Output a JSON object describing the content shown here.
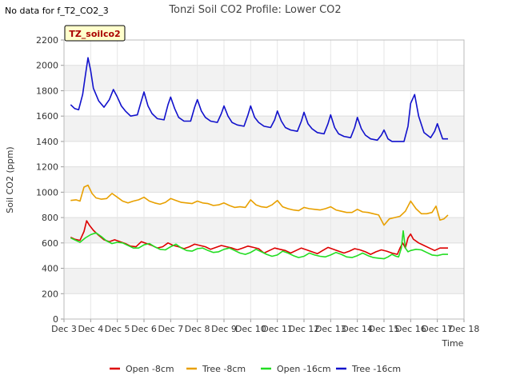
{
  "no_data_note": "No data for f_T2_CO2_3",
  "site_badge": "TZ_soilco2",
  "chart_data": {
    "type": "line",
    "title": "Tonzi Soil CO2 Profile: Lower CO2",
    "xlabel": "Time",
    "ylabel": "Soil CO2 (ppm)",
    "xlim": [
      3,
      18
    ],
    "ylim": [
      0,
      2200
    ],
    "x_ticks": [
      3,
      4,
      5,
      6,
      7,
      8,
      9,
      10,
      11,
      12,
      13,
      14,
      15,
      16,
      17,
      18
    ],
    "x_tick_labels": [
      "Dec 3",
      "Dec 4",
      "Dec 5",
      "Dec 6",
      "Dec 7",
      "Dec 8",
      "Dec 9",
      "Dec 10",
      "Dec 11",
      "Dec 12",
      "Dec 13",
      "Dec 14",
      "Dec 15",
      "Dec 16",
      "Dec 17",
      "Dec 18"
    ],
    "y_ticks": [
      0,
      200,
      400,
      600,
      800,
      1000,
      1200,
      1400,
      1600,
      1800,
      2000,
      2200
    ],
    "grid": true,
    "legend_position": "bottom",
    "series": [
      {
        "name": "Open -8cm",
        "color": "#dd0000",
        "x": [
          3.25,
          3.4,
          3.6,
          3.75,
          3.85,
          3.95,
          4.1,
          4.3,
          4.5,
          4.7,
          4.9,
          5.1,
          5.3,
          5.5,
          5.7,
          5.9,
          6.1,
          6.3,
          6.5,
          6.7,
          6.9,
          7.1,
          7.3,
          7.5,
          7.7,
          7.9,
          8.1,
          8.3,
          8.5,
          8.7,
          8.9,
          9.1,
          9.3,
          9.5,
          9.7,
          9.9,
          10.1,
          10.3,
          10.5,
          10.7,
          10.9,
          11.1,
          11.3,
          11.5,
          11.7,
          11.9,
          12.1,
          12.3,
          12.5,
          12.7,
          12.9,
          13.1,
          13.3,
          13.5,
          13.7,
          13.9,
          14.1,
          14.3,
          14.5,
          14.7,
          14.9,
          15.1,
          15.3,
          15.5,
          15.6,
          15.7,
          15.8,
          15.9,
          16.0,
          16.1,
          16.3,
          16.5,
          16.7,
          16.9,
          17.1,
          17.4
        ],
        "y": [
          645,
          630,
          620,
          690,
          775,
          740,
          700,
          660,
          625,
          610,
          625,
          610,
          595,
          575,
          570,
          610,
          595,
          580,
          560,
          570,
          600,
          580,
          570,
          555,
          570,
          590,
          580,
          570,
          550,
          565,
          580,
          570,
          560,
          545,
          560,
          575,
          565,
          555,
          520,
          540,
          560,
          550,
          540,
          520,
          540,
          560,
          545,
          530,
          515,
          540,
          565,
          550,
          535,
          520,
          535,
          555,
          545,
          530,
          510,
          530,
          545,
          535,
          520,
          510,
          560,
          600,
          560,
          640,
          670,
          630,
          600,
          580,
          560,
          540,
          560,
          560
        ]
      },
      {
        "name": "Tree -8cm",
        "color": "#e8a000",
        "x": [
          3.25,
          3.45,
          3.6,
          3.75,
          3.9,
          4.05,
          4.2,
          4.4,
          4.6,
          4.8,
          5.0,
          5.2,
          5.4,
          5.6,
          5.8,
          6.0,
          6.2,
          6.4,
          6.6,
          6.8,
          7.0,
          7.2,
          7.4,
          7.6,
          7.8,
          8.0,
          8.2,
          8.4,
          8.6,
          8.8,
          9.0,
          9.2,
          9.4,
          9.6,
          9.8,
          10.0,
          10.2,
          10.4,
          10.6,
          10.8,
          11.0,
          11.2,
          11.4,
          11.6,
          11.8,
          12.0,
          12.2,
          12.4,
          12.6,
          12.8,
          13.0,
          13.2,
          13.4,
          13.6,
          13.8,
          14.0,
          14.2,
          14.4,
          14.6,
          14.8,
          15.0,
          15.2,
          15.4,
          15.6,
          15.8,
          16.0,
          16.2,
          16.4,
          16.6,
          16.8,
          16.95,
          17.1,
          17.25,
          17.4
        ],
        "y": [
          935,
          940,
          930,
          1040,
          1055,
          990,
          955,
          945,
          950,
          990,
          960,
          930,
          915,
          930,
          940,
          960,
          930,
          915,
          905,
          920,
          950,
          935,
          920,
          915,
          910,
          930,
          915,
          910,
          895,
          900,
          915,
          895,
          880,
          885,
          880,
          940,
          900,
          885,
          880,
          900,
          935,
          885,
          870,
          860,
          855,
          880,
          870,
          865,
          860,
          870,
          885,
          860,
          850,
          840,
          840,
          865,
          845,
          840,
          830,
          820,
          740,
          790,
          800,
          810,
          850,
          930,
          870,
          830,
          830,
          840,
          890,
          780,
          790,
          820
        ]
      },
      {
        "name": "Open -16cm",
        "color": "#22dd22",
        "x": [
          3.25,
          3.4,
          3.6,
          3.8,
          4.0,
          4.2,
          4.4,
          4.6,
          4.8,
          5.0,
          5.2,
          5.4,
          5.6,
          5.8,
          6.0,
          6.2,
          6.4,
          6.6,
          6.8,
          7.0,
          7.2,
          7.4,
          7.6,
          7.8,
          8.0,
          8.2,
          8.4,
          8.6,
          8.8,
          9.0,
          9.2,
          9.4,
          9.6,
          9.8,
          10.0,
          10.2,
          10.4,
          10.6,
          10.8,
          11.0,
          11.2,
          11.4,
          11.6,
          11.8,
          12.0,
          12.2,
          12.4,
          12.6,
          12.8,
          13.0,
          13.2,
          13.4,
          13.6,
          13.8,
          14.0,
          14.2,
          14.4,
          14.6,
          14.8,
          15.0,
          15.15,
          15.3,
          15.45,
          15.55,
          15.65,
          15.72,
          15.8,
          15.9,
          16.0,
          16.2,
          16.4,
          16.6,
          16.8,
          17.0,
          17.2,
          17.4
        ],
        "y": [
          640,
          625,
          605,
          640,
          665,
          680,
          650,
          615,
          595,
          605,
          600,
          580,
          560,
          560,
          585,
          595,
          570,
          550,
          545,
          570,
          590,
          560,
          540,
          535,
          555,
          560,
          540,
          525,
          530,
          550,
          560,
          540,
          520,
          510,
          525,
          550,
          530,
          510,
          495,
          505,
          535,
          520,
          500,
          485,
          495,
          520,
          505,
          495,
          490,
          505,
          525,
          510,
          490,
          485,
          500,
          520,
          500,
          485,
          480,
          475,
          490,
          510,
          495,
          490,
          560,
          695,
          560,
          530,
          540,
          550,
          545,
          525,
          505,
          500,
          510,
          510
        ]
      },
      {
        "name": "Tree -16cm",
        "color": "#1111cc",
        "x": [
          3.25,
          3.4,
          3.55,
          3.7,
          3.8,
          3.9,
          4.0,
          4.1,
          4.3,
          4.5,
          4.7,
          4.85,
          5.0,
          5.15,
          5.3,
          5.5,
          5.75,
          5.9,
          6.0,
          6.15,
          6.3,
          6.5,
          6.75,
          6.9,
          7.0,
          7.15,
          7.3,
          7.5,
          7.75,
          7.9,
          8.0,
          8.15,
          8.3,
          8.5,
          8.75,
          8.9,
          9.0,
          9.15,
          9.3,
          9.5,
          9.75,
          9.9,
          10.0,
          10.15,
          10.3,
          10.5,
          10.75,
          10.9,
          11.0,
          11.15,
          11.3,
          11.5,
          11.75,
          11.9,
          12.0,
          12.15,
          12.3,
          12.5,
          12.75,
          12.9,
          13.0,
          13.15,
          13.3,
          13.5,
          13.75,
          13.9,
          14.0,
          14.15,
          14.3,
          14.5,
          14.75,
          14.9,
          15.0,
          15.15,
          15.3,
          15.5,
          15.75,
          15.9,
          16.0,
          16.15,
          16.3,
          16.5,
          16.75,
          16.9,
          17.0,
          17.2,
          17.4
        ],
        "y": [
          1690,
          1660,
          1650,
          1770,
          1920,
          2060,
          1960,
          1820,
          1720,
          1670,
          1730,
          1810,
          1750,
          1680,
          1640,
          1600,
          1610,
          1720,
          1790,
          1680,
          1620,
          1580,
          1570,
          1690,
          1750,
          1660,
          1590,
          1560,
          1560,
          1670,
          1730,
          1640,
          1590,
          1560,
          1550,
          1620,
          1680,
          1600,
          1550,
          1530,
          1520,
          1610,
          1680,
          1590,
          1550,
          1520,
          1510,
          1570,
          1640,
          1560,
          1510,
          1490,
          1480,
          1560,
          1630,
          1540,
          1500,
          1470,
          1460,
          1540,
          1610,
          1510,
          1460,
          1440,
          1430,
          1510,
          1590,
          1500,
          1450,
          1420,
          1410,
          1450,
          1490,
          1420,
          1400,
          1400,
          1400,
          1520,
          1700,
          1770,
          1600,
          1470,
          1430,
          1480,
          1540,
          1420,
          1420
        ]
      }
    ]
  }
}
